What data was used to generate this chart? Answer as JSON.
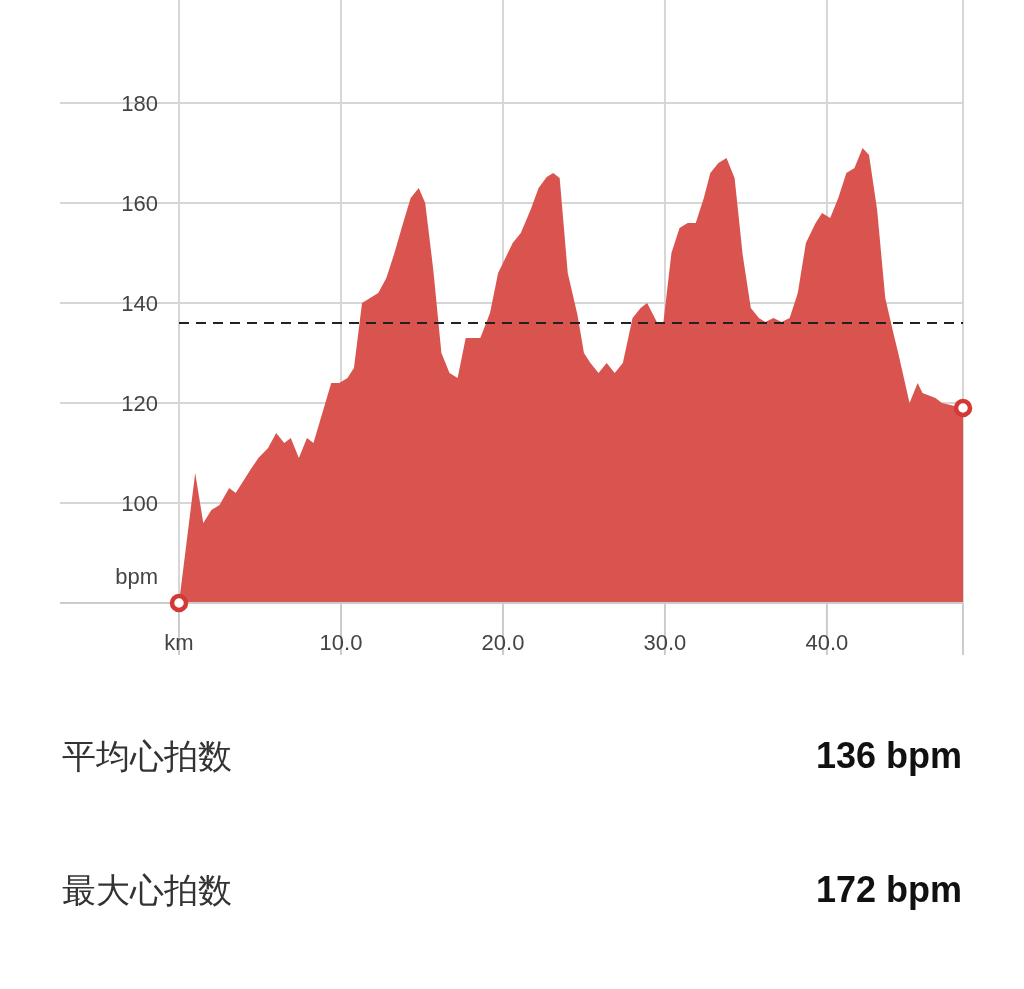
{
  "chart_data": [
    {
      "type": "area",
      "xlim": [
        0,
        48.4
      ],
      "ylim": [
        80,
        200.6
      ],
      "xticks": [
        {
          "value": 0,
          "label": "km"
        },
        {
          "value": 10,
          "label": "10.0"
        },
        {
          "value": 20,
          "label": "20.0"
        },
        {
          "value": 30,
          "label": "30.0"
        },
        {
          "value": 40,
          "label": "40.0"
        },
        {
          "value": 48.4,
          "label": null
        }
      ],
      "yticks": [
        {
          "value": 80,
          "label": null
        },
        100,
        120,
        140,
        160,
        180
      ],
      "ylabel": "bpm",
      "grid": true,
      "ref_lines": [
        {
          "axis": "y",
          "value": 136,
          "line_style": "dashed",
          "color": "#222222"
        }
      ],
      "series": [
        {
          "type": "area",
          "color": "#d9544f",
          "x": [
            0,
            1,
            1.5,
            2,
            2.5,
            3.1,
            3.5,
            4.4,
            4.9,
            5.5,
            6,
            6.5,
            6.9,
            7.4,
            7.9,
            8.3,
            9.4,
            9.9,
            10.4,
            10.8,
            11.3,
            12.3,
            12.8,
            13.3,
            13.8,
            14.3,
            14.8,
            15.2,
            15.7,
            16.2,
            16.7,
            17.2,
            17.7,
            18.6,
            19.2,
            19.7,
            20.6,
            21.1,
            21.7,
            22.2,
            22.7,
            23.1,
            23.5,
            24,
            24.6,
            25,
            25.4,
            25.9,
            26.4,
            26.9,
            27.4,
            28,
            28.5,
            28.9,
            29.5,
            29.9,
            30.4,
            30.9,
            31.4,
            31.9,
            32.4,
            32.8,
            33.3,
            33.8,
            34.3,
            34.8,
            35.3,
            35.8,
            36.2,
            36.7,
            37.2,
            37.7,
            38.2,
            38.7,
            39.3,
            39.7,
            40.2,
            40.7,
            41.2,
            41.7,
            42.2,
            42.6,
            43.1,
            43.6,
            44.1,
            44.4,
            45.1,
            45.6,
            45.9,
            46.7,
            47.1,
            48.4
          ],
          "values": [
            80,
            106,
            96,
            98.6,
            99.6,
            103,
            102,
            106.6,
            109,
            111,
            114,
            112,
            113,
            109,
            113,
            112,
            124,
            124,
            125,
            127,
            140,
            142,
            145,
            150,
            155.6,
            161,
            163,
            160,
            146.6,
            130,
            126,
            125,
            133,
            133,
            138,
            146,
            152,
            154,
            158.6,
            163,
            165.2,
            166,
            165,
            146,
            137.6,
            130,
            128,
            126,
            128,
            126,
            128,
            137,
            139,
            140,
            136.2,
            136,
            150,
            155,
            156,
            156,
            161,
            166,
            168,
            169,
            165,
            149.6,
            139,
            137,
            136.2,
            137,
            136.2,
            137,
            142,
            152,
            156,
            158,
            157,
            161,
            166,
            167,
            171,
            169.6,
            158.6,
            141,
            134,
            130,
            120,
            124,
            122,
            121,
            120,
            119
          ]
        },
        {
          "type": "scatter",
          "color": "#d33a36",
          "marker": "circle",
          "x": [
            0,
            48.4
          ],
          "values": [
            80,
            119
          ]
        }
      ]
    },
    {
      "type": "other",
      "annotations": [
        "平均心拍数",
        "136 bpm",
        "最大心拍数",
        "172 bpm"
      ]
    }
  ]
}
